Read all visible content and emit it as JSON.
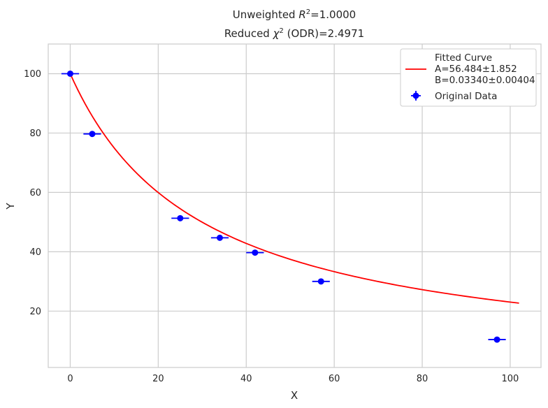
{
  "chart_data": {
    "type": "scatter",
    "title_line1_prefix": "Unweighted ",
    "title_line1_symbol": "R",
    "title_line1_sup": "2",
    "title_line1_suffix": "=1.0000",
    "title_line2_prefix": "Reduced ",
    "title_line2_symbol": "χ",
    "title_line2_sup": "2",
    "title_line2_suffix": " (ODR)=2.4971",
    "xlabel": "X",
    "ylabel": "Y",
    "xlim": [
      -5,
      107
    ],
    "ylim": [
      1,
      110
    ],
    "xticks": [
      0,
      20,
      40,
      60,
      80,
      100
    ],
    "yticks": [
      20,
      40,
      60,
      80,
      100
    ],
    "grid": true,
    "legend_position": "top-right",
    "series": [
      {
        "name": "Original Data",
        "kind": "errorbar",
        "color": "#0000ff",
        "points": [
          {
            "x": 0,
            "y": 100,
            "xerr": 2
          },
          {
            "x": 5,
            "y": 79.7,
            "xerr": 2
          },
          {
            "x": 25,
            "y": 51.3,
            "xerr": 2
          },
          {
            "x": 34,
            "y": 44.7,
            "xerr": 2
          },
          {
            "x": 42,
            "y": 39.7,
            "xerr": 2
          },
          {
            "x": 57,
            "y": 30.0,
            "xerr": 2
          },
          {
            "x": 97,
            "y": 10.4,
            "xerr": 2
          }
        ]
      },
      {
        "name": "Fitted Curve",
        "legend_lines": [
          "Fitted Curve",
          "A=56.484±1.852",
          "B=0.03340±0.00404"
        ],
        "kind": "line",
        "color": "#ff0000",
        "x_range": [
          0,
          102
        ],
        "model": "y = 100 / (1 + B*x)",
        "params": {
          "B": 0.0334
        }
      }
    ]
  }
}
